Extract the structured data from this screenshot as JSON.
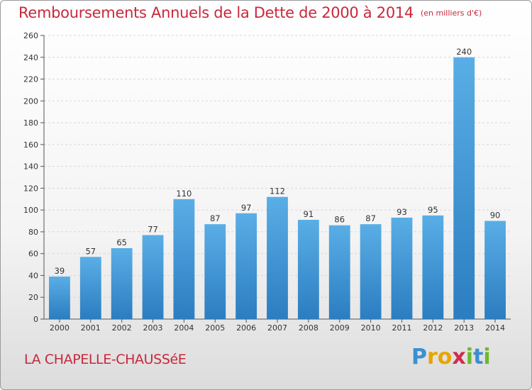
{
  "header": {
    "title": "Remboursements Annuels de la Dette de 2000 à 2014",
    "unit": "(en milliers d'€)"
  },
  "footer": {
    "commune": "LA CHAPELLE-CHAUSSéE",
    "logo": "Proxiti"
  },
  "colors": {
    "bar_top": "#5aaee6",
    "bar_bottom": "#2b7dc0",
    "title": "#c8283c",
    "grid": "#d7d7d7"
  },
  "chart_data": {
    "type": "bar",
    "title": "Remboursements Annuels de la Dette de 2000 à 2014",
    "ylabel": "en milliers d'€",
    "xlabel": "",
    "categories": [
      "2000",
      "2001",
      "2002",
      "2003",
      "2004",
      "2005",
      "2006",
      "2007",
      "2008",
      "2009",
      "2010",
      "2011",
      "2012",
      "2013",
      "2014"
    ],
    "values": [
      39,
      57,
      65,
      77,
      110,
      87,
      97,
      112,
      91,
      86,
      87,
      93,
      95,
      240,
      90
    ],
    "ylim": [
      0,
      260
    ],
    "yticks": [
      0,
      20,
      40,
      60,
      80,
      100,
      120,
      140,
      160,
      180,
      200,
      220,
      240,
      260
    ],
    "grid": true
  }
}
